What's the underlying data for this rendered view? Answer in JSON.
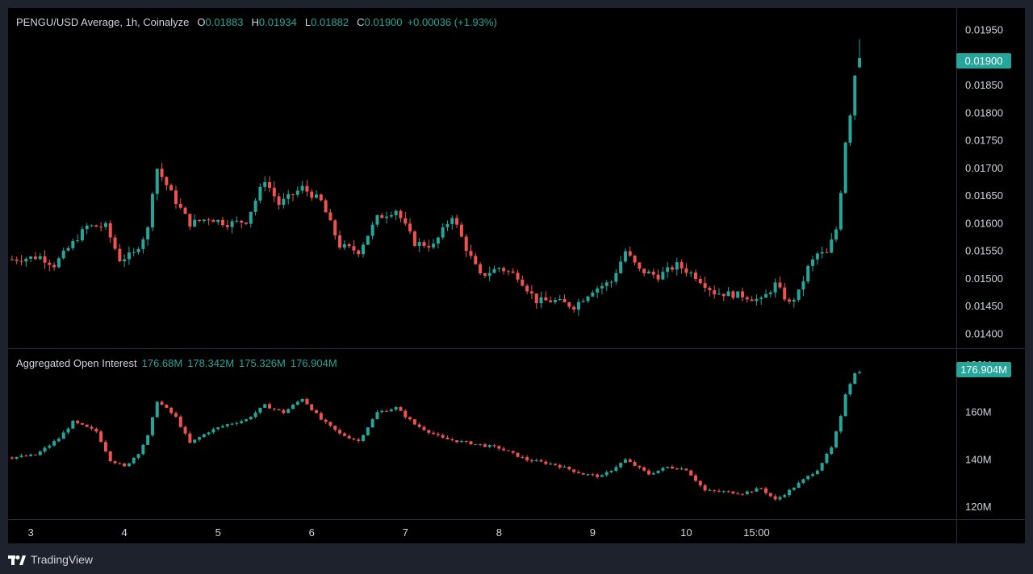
{
  "header": {
    "symbol": "PENGU/USD Average, 1h, Coinalyze",
    "o_label": "O",
    "o_value": "0.01883",
    "h_label": "H",
    "h_value": "0.01934",
    "l_label": "L",
    "l_value": "0.01882",
    "c_label": "C",
    "c_value": "0.01900",
    "change": "+0.00036 (+1.93%)"
  },
  "oi_header": {
    "title": "Aggregated Open Interest",
    "v1": "176.68M",
    "v2": "178.342M",
    "v3": "175.326M",
    "v4": "176.904M"
  },
  "footer": {
    "brand": "TradingView",
    "logo_icon": "tradingview-logo-icon"
  },
  "colors": {
    "up": "#26a69a",
    "down": "#ef5350",
    "grid": "#2a2e39",
    "text": "#d1d4dc"
  },
  "chart_data": [
    {
      "type": "candlestick",
      "title": "PENGU/USD Average, 1h, Coinalyze",
      "ylim": [
        0.0138,
        0.0197
      ],
      "y_ticks": [
        "0.01950",
        "0.01900",
        "0.01850",
        "0.01800",
        "0.01750",
        "0.01700",
        "0.01650",
        "0.01600",
        "0.01550",
        "0.01500",
        "0.01450",
        "0.01400"
      ],
      "last_value": "0.01900",
      "anchors": [
        [
          0,
          0.01535
        ],
        [
          6,
          0.0154
        ],
        [
          9,
          0.01525
        ],
        [
          12,
          0.01555
        ],
        [
          16,
          0.01595
        ],
        [
          20,
          0.01595
        ],
        [
          23,
          0.01535
        ],
        [
          26,
          0.01545
        ],
        [
          29,
          0.0159
        ],
        [
          30,
          0.0166
        ],
        [
          31,
          0.017
        ],
        [
          35,
          0.0164
        ],
        [
          38,
          0.016
        ],
        [
          42,
          0.0161
        ],
        [
          46,
          0.016
        ],
        [
          50,
          0.01605
        ],
        [
          54,
          0.0168
        ],
        [
          57,
          0.01635
        ],
        [
          62,
          0.01665
        ],
        [
          66,
          0.0164
        ],
        [
          70,
          0.0156
        ],
        [
          74,
          0.0155
        ],
        [
          78,
          0.0161
        ],
        [
          82,
          0.01625
        ],
        [
          86,
          0.01565
        ],
        [
          90,
          0.0156
        ],
        [
          94,
          0.01615
        ],
        [
          97,
          0.01555
        ],
        [
          100,
          0.01505
        ],
        [
          104,
          0.0152
        ],
        [
          108,
          0.01505
        ],
        [
          112,
          0.0146
        ],
        [
          116,
          0.0146
        ],
        [
          120,
          0.0145
        ],
        [
          124,
          0.0148
        ],
        [
          128,
          0.01495
        ],
        [
          131,
          0.0155
        ],
        [
          134,
          0.01515
        ],
        [
          138,
          0.01505
        ],
        [
          142,
          0.01525
        ],
        [
          146,
          0.01505
        ],
        [
          150,
          0.01475
        ],
        [
          156,
          0.0147
        ],
        [
          160,
          0.0146
        ],
        [
          163,
          0.0149
        ],
        [
          166,
          0.01455
        ],
        [
          168,
          0.01475
        ],
        [
          170,
          0.0152
        ],
        [
          172,
          0.01545
        ],
        [
          174,
          0.01545
        ],
        [
          176,
          0.0159
        ],
        [
          177,
          0.0166
        ],
        [
          178,
          0.0175
        ],
        [
          179,
          0.018
        ],
        [
          180,
          0.0187
        ],
        [
          181,
          0.019
        ]
      ],
      "last_candle": {
        "open": 0.01883,
        "high": 0.01934,
        "low": 0.01882,
        "close": 0.019
      }
    },
    {
      "type": "candlestick",
      "title": "Aggregated Open Interest",
      "ylim": [
        117,
        181
      ],
      "y_ticks": [
        "180M",
        "160M",
        "140M",
        "120M"
      ],
      "last_value": "176.904M",
      "anchors": [
        [
          0,
          141
        ],
        [
          5,
          142
        ],
        [
          10,
          149
        ],
        [
          13,
          156
        ],
        [
          18,
          152
        ],
        [
          21,
          140
        ],
        [
          24,
          137
        ],
        [
          27,
          143
        ],
        [
          29,
          150
        ],
        [
          31,
          165
        ],
        [
          35,
          158
        ],
        [
          38,
          147
        ],
        [
          42,
          152
        ],
        [
          46,
          155
        ],
        [
          50,
          157
        ],
        [
          54,
          163
        ],
        [
          58,
          160
        ],
        [
          62,
          166
        ],
        [
          66,
          157
        ],
        [
          70,
          151
        ],
        [
          74,
          148
        ],
        [
          78,
          160
        ],
        [
          82,
          162
        ],
        [
          86,
          155
        ],
        [
          92,
          149
        ],
        [
          98,
          147
        ],
        [
          104,
          145
        ],
        [
          110,
          140
        ],
        [
          116,
          138
        ],
        [
          122,
          134
        ],
        [
          126,
          133
        ],
        [
          131,
          140
        ],
        [
          136,
          134
        ],
        [
          140,
          137
        ],
        [
          144,
          136
        ],
        [
          148,
          127
        ],
        [
          156,
          126
        ],
        [
          160,
          128
        ],
        [
          163,
          123
        ],
        [
          166,
          127
        ],
        [
          168,
          130
        ],
        [
          172,
          136
        ],
        [
          175,
          145
        ],
        [
          177,
          158
        ],
        [
          178,
          168
        ],
        [
          180,
          177
        ],
        [
          181,
          176.904
        ]
      ]
    }
  ],
  "x_axis": {
    "ticks": [
      {
        "label": "3",
        "index": 4
      },
      {
        "label": "4",
        "index": 24
      },
      {
        "label": "5",
        "index": 44
      },
      {
        "label": "6",
        "index": 64
      },
      {
        "label": "7",
        "index": 84
      },
      {
        "label": "8",
        "index": 104
      },
      {
        "label": "9",
        "index": 124
      },
      {
        "label": "10",
        "index": 144
      },
      {
        "label": "15:00",
        "index": 159
      }
    ]
  }
}
